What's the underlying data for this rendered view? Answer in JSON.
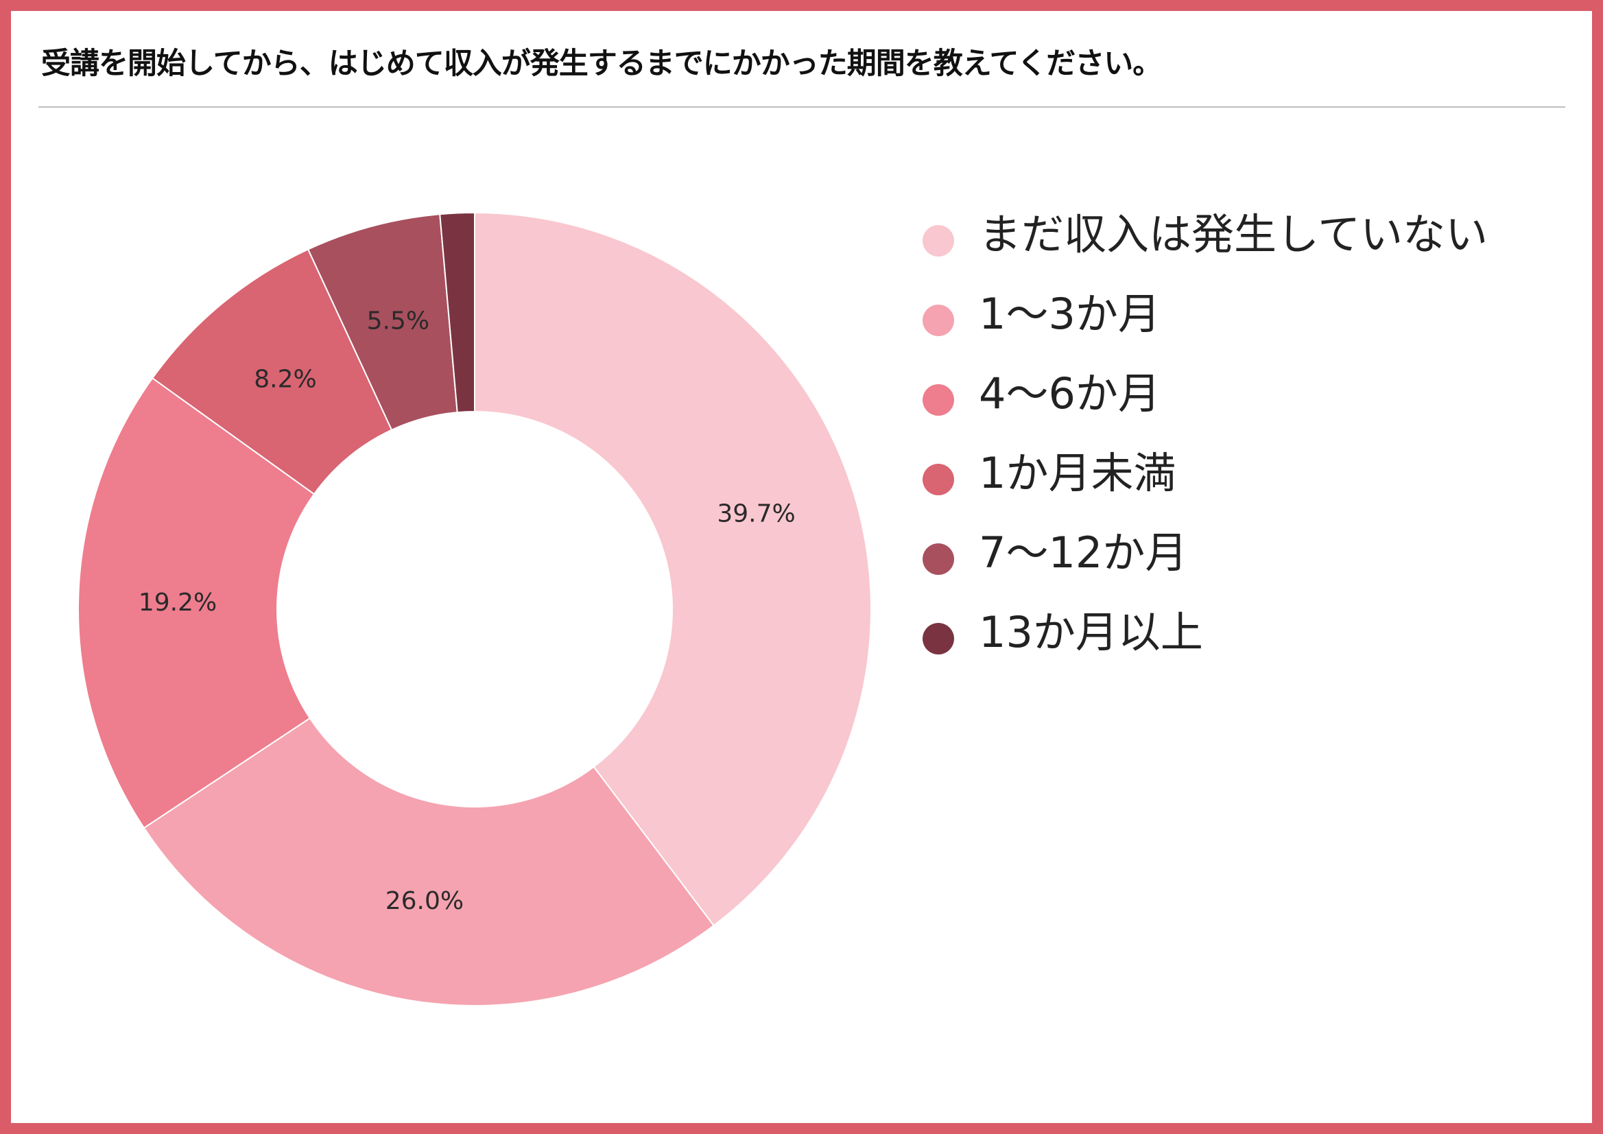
{
  "title": "受講を開始してから、はじめて収入が発生するまでにかかった期間を教えてください。",
  "colors": {
    "frame": "#d95c68",
    "slices": [
      "#f9c7cf",
      "#f5a3b0",
      "#ee7d8e",
      "#d96472",
      "#a8505e",
      "#7a3441"
    ]
  },
  "chart_data": {
    "type": "pie",
    "variant": "donut",
    "title": "受講を開始してから、はじめて収入が発生するまでにかかった期間を教えてください。",
    "categories": [
      "まだ収入は発生していない",
      "1〜3か月",
      "4〜6か月",
      "1か月未満",
      "7〜12か月",
      "13か月以上"
    ],
    "values": [
      39.7,
      26.0,
      19.2,
      8.2,
      5.5,
      1.4
    ],
    "labels": [
      "39.7%",
      "26.0%",
      "19.2%",
      "8.2%",
      "5.5%",
      ""
    ],
    "start_angle_deg": 0,
    "direction": "clockwise",
    "legend": "right"
  }
}
